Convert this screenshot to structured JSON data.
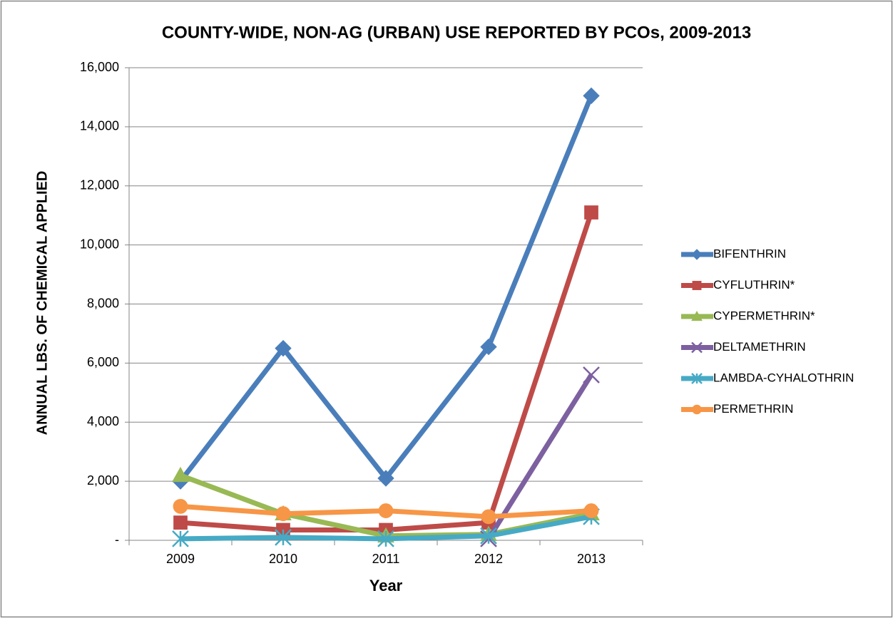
{
  "chart_data": {
    "type": "line",
    "title": "COUNTY-WIDE, NON-AG (URBAN) USE REPORTED BY PCOs, 2009-2013",
    "x_label": "Year",
    "y_label": "ANNUAL LBS. OF CHEMICAL APPLIED",
    "categories": [
      "2009",
      "2010",
      "2011",
      "2012",
      "2013"
    ],
    "ylim": [
      0,
      16000
    ],
    "yticks": [
      {
        "value": 0,
        "label": "-"
      },
      {
        "value": 2000,
        "label": "2,000"
      },
      {
        "value": 4000,
        "label": "4,000"
      },
      {
        "value": 6000,
        "label": "6,000"
      },
      {
        "value": 8000,
        "label": "8,000"
      },
      {
        "value": 10000,
        "label": "10,000"
      },
      {
        "value": 12000,
        "label": "12,000"
      },
      {
        "value": 14000,
        "label": "14,000"
      },
      {
        "value": 16000,
        "label": "16,000"
      }
    ],
    "grid": true,
    "legend": "right",
    "series": [
      {
        "name": "BIFENTHRIN",
        "color": "#4a7ebb",
        "marker": "diamond",
        "values": [
          2000,
          6500,
          2100,
          6550,
          15050
        ]
      },
      {
        "name": "CYFLUTHRIN*",
        "color": "#be4b48",
        "marker": "square",
        "values": [
          600,
          350,
          350,
          600,
          11100
        ]
      },
      {
        "name": "CYPERMETHRIN*",
        "color": "#98b954",
        "marker": "triangle",
        "values": [
          2200,
          900,
          150,
          200,
          900
        ]
      },
      {
        "name": "DELTAMETHRIN",
        "color": "#7d60a0",
        "marker": "x",
        "values": [
          null,
          null,
          null,
          50,
          5600
        ]
      },
      {
        "name": "LAMBDA-CYHALOTHRIN",
        "color": "#46aac5",
        "marker": "star",
        "values": [
          50,
          100,
          50,
          150,
          800
        ]
      },
      {
        "name": "PERMETHRIN",
        "color": "#f79646",
        "marker": "circle",
        "values": [
          1150,
          900,
          1000,
          800,
          1000
        ]
      }
    ]
  }
}
